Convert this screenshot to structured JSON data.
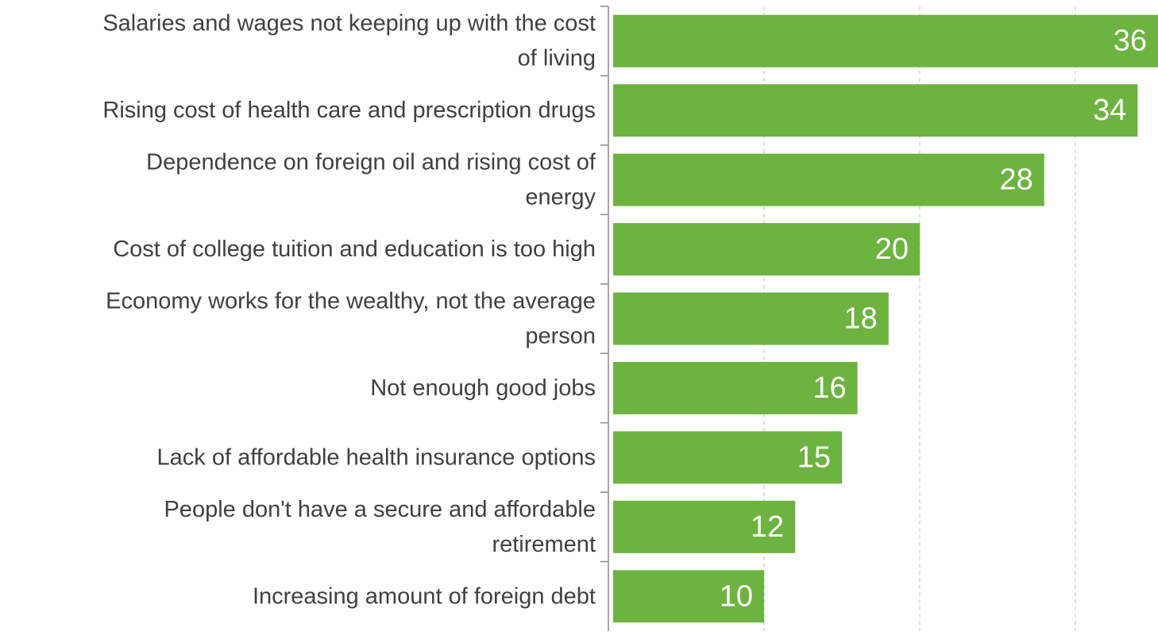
{
  "chart_data": {
    "type": "bar",
    "orientation": "horizontal",
    "title": "",
    "xlabel": "",
    "ylabel": "",
    "categories": [
      "Salaries and wages not keeping up with the cost of living",
      "Rising cost of health care and prescription drugs",
      "Dependence on foreign oil and rising cost of energy",
      "Cost of college tuition and education is too high",
      "Economy works for the wealthy, not the average person",
      "Not enough good jobs",
      "Lack of affordable health insurance options",
      "People don't have a secure and affordable retirement",
      "Increasing amount of foreign debt"
    ],
    "category_lines": [
      [
        "Salaries and wages not keeping up with the cost",
        "of living"
      ],
      [
        "Rising cost of health care and prescription drugs"
      ],
      [
        "Dependence on foreign oil and rising cost of",
        "energy"
      ],
      [
        "Cost of college tuition and education is too high"
      ],
      [
        "Economy works for the wealthy, not the average",
        "person"
      ],
      [
        "Not enough good jobs"
      ],
      [
        "Lack of affordable health insurance options"
      ],
      [
        "People don't have a secure and affordable",
        "retirement"
      ],
      [
        "Increasing amount of foreign debt"
      ]
    ],
    "values": [
      36,
      34,
      28,
      20,
      18,
      16,
      15,
      12,
      10
    ],
    "value_labels": [
      "36",
      "34",
      "28",
      "20",
      "18",
      "16",
      "15",
      "12",
      "10"
    ],
    "xlim": [
      0,
      35
    ],
    "gridlines": [
      10,
      20,
      30
    ],
    "grid": true,
    "grid_style": "dashed",
    "data_labels": "inside-end",
    "legend": "none",
    "colors": {
      "bar": "#6db33f",
      "label_text": "#ffffff",
      "category_text": "#404040",
      "axis": "#888888",
      "grid": "#c8c8c8"
    }
  }
}
